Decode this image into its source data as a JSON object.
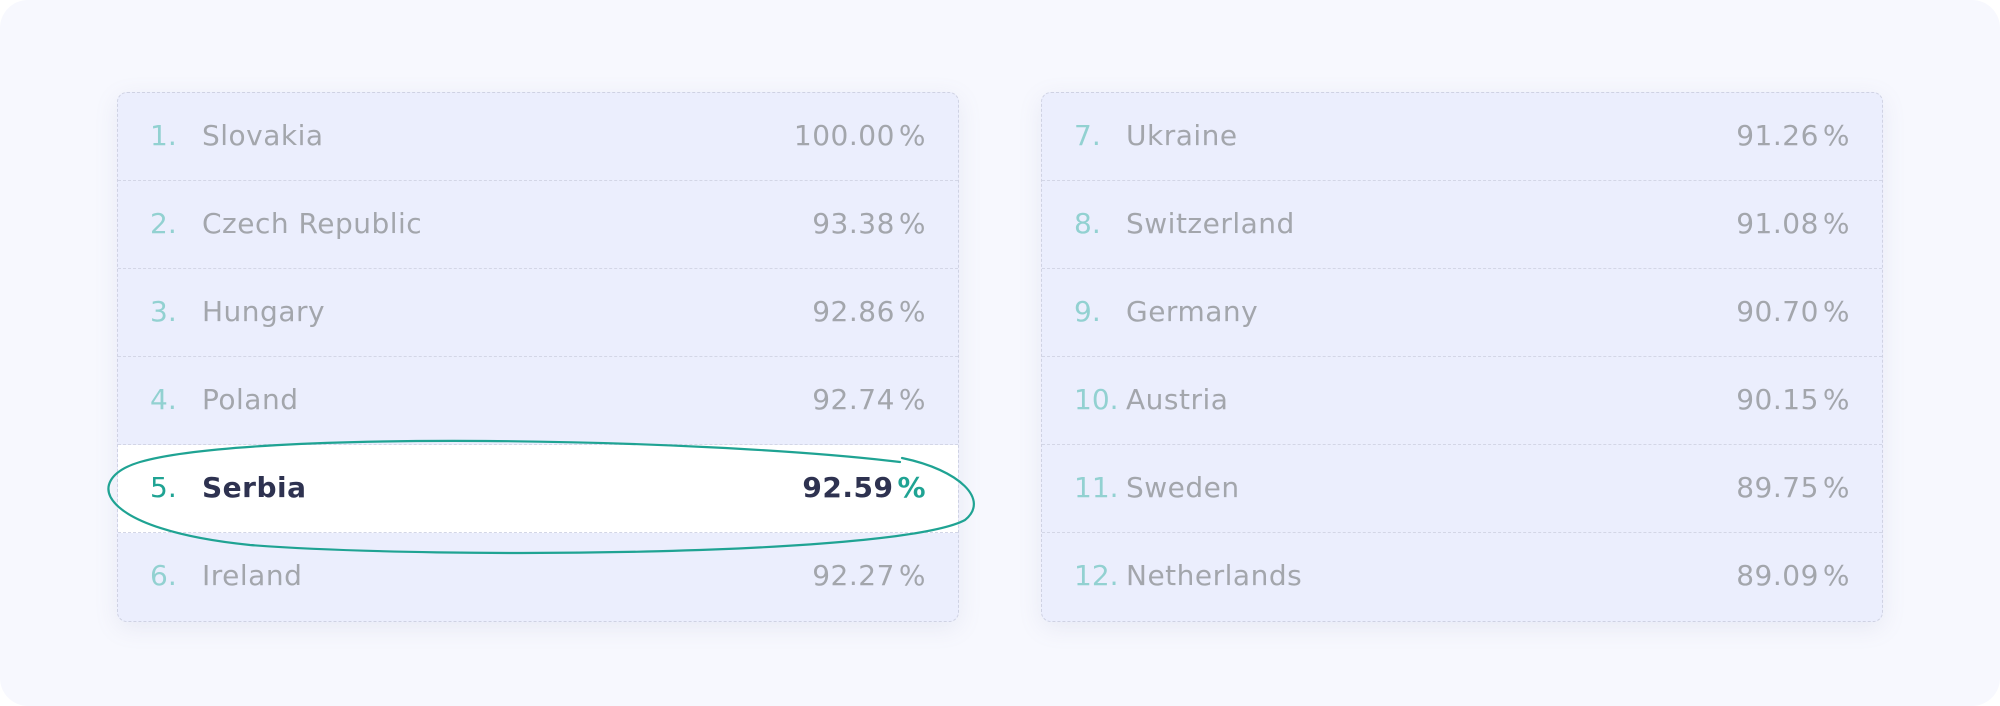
{
  "accent_color": "#1fa393",
  "highlighted_rank": 5,
  "left_table": [
    {
      "rank": "1.",
      "country": "Slovakia",
      "value": "100.00",
      "unit": "%"
    },
    {
      "rank": "2.",
      "country": "Czech Republic",
      "value": "93.38",
      "unit": "%"
    },
    {
      "rank": "3.",
      "country": "Hungary",
      "value": "92.86",
      "unit": "%"
    },
    {
      "rank": "4.",
      "country": "Poland",
      "value": "92.74",
      "unit": "%"
    },
    {
      "rank": "5.",
      "country": "Serbia",
      "value": "92.59",
      "unit": "%"
    },
    {
      "rank": "6.",
      "country": "Ireland",
      "value": "92.27",
      "unit": "%"
    }
  ],
  "right_table": [
    {
      "rank": "7.",
      "country": "Ukraine",
      "value": "91.26",
      "unit": "%"
    },
    {
      "rank": "8.",
      "country": "Switzerland",
      "value": "91.08",
      "unit": "%"
    },
    {
      "rank": "9.",
      "country": "Germany",
      "value": "90.70",
      "unit": "%"
    },
    {
      "rank": "10.",
      "country": "Austria",
      "value": "90.15",
      "unit": "%"
    },
    {
      "rank": "11.",
      "country": "Sweden",
      "value": "89.75",
      "unit": "%"
    },
    {
      "rank": "12.",
      "country": "Netherlands",
      "value": "89.09",
      "unit": "%"
    }
  ]
}
